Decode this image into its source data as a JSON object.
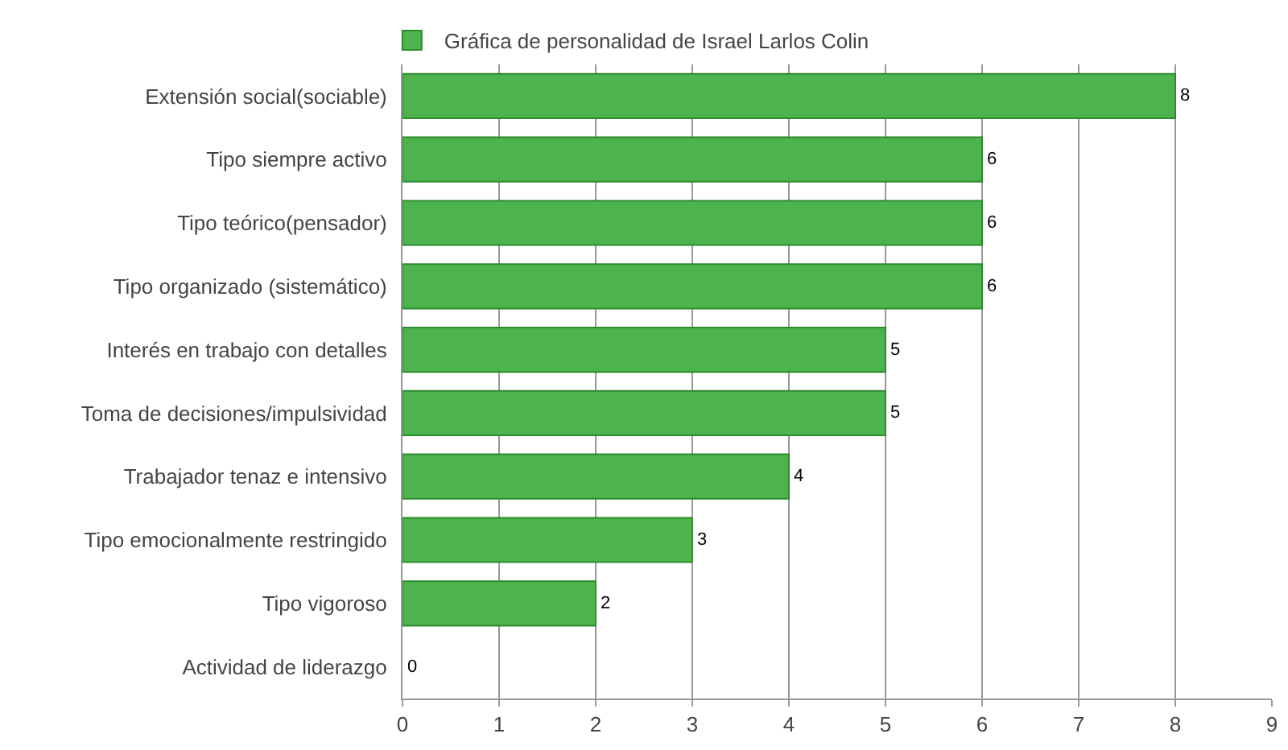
{
  "chart_data": {
    "type": "bar",
    "orientation": "horizontal",
    "categories": [
      "Extensión social(sociable)",
      "Tipo siempre activo",
      "Tipo teórico(pensador)",
      "Tipo organizado (sistemático)",
      "Interés en trabajo con detalles",
      "Toma de decisiones/impulsividad",
      "Trabajador tenaz e intensivo",
      "Tipo emocionalmente restringido",
      "Tipo vigoroso",
      "Actividad de liderazgo"
    ],
    "series": [
      {
        "name": "Gráfica de personalidad de Israel Larlos Colin",
        "color": "#4db34d",
        "values": [
          8,
          6,
          6,
          6,
          5,
          5,
          4,
          3,
          2,
          0
        ]
      }
    ],
    "xlim": [
      0,
      9
    ],
    "xticks": [
      0,
      1,
      2,
      3,
      4,
      5,
      6,
      7,
      8,
      9
    ],
    "grid": "x",
    "legend": "top",
    "data_labels": true
  }
}
